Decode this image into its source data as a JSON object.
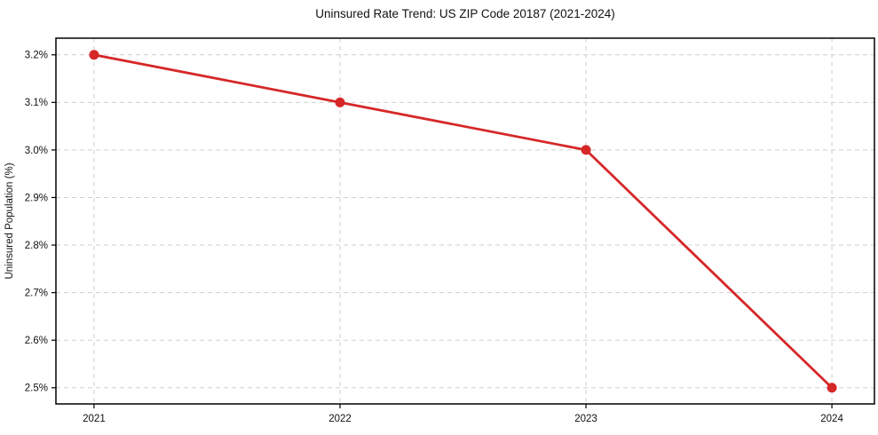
{
  "chart_data": {
    "type": "line",
    "title": "Uninsured Rate Trend: US ZIP Code 20187 (2021-2024)",
    "xlabel": "",
    "ylabel": "Uninsured Population (%)",
    "x": [
      2021,
      2022,
      2023,
      2024
    ],
    "y": [
      3.2,
      3.1,
      3.0,
      2.5
    ],
    "xticks": [
      2021,
      2022,
      2023,
      2024
    ],
    "xtick_labels": [
      "2021",
      "2022",
      "2023",
      "2024"
    ],
    "yticks": [
      2.5,
      2.6,
      2.7,
      2.8,
      2.9,
      3.0,
      3.1,
      3.2
    ],
    "ytick_labels": [
      "2.5%",
      "2.6%",
      "2.7%",
      "2.8%",
      "2.9%",
      "3.0%",
      "3.1%",
      "3.2%"
    ],
    "xlim": [
      2020.845,
      2024.173
    ],
    "ylim": [
      2.466,
      3.235
    ],
    "grid": true,
    "legend": null,
    "line_color": "#d62728",
    "marker": "circle",
    "marker_radius": 5.5,
    "line_width": 2.8,
    "grid_color": "#cfcfcf",
    "axis_color": "#000000",
    "background": "#ffffff"
  }
}
